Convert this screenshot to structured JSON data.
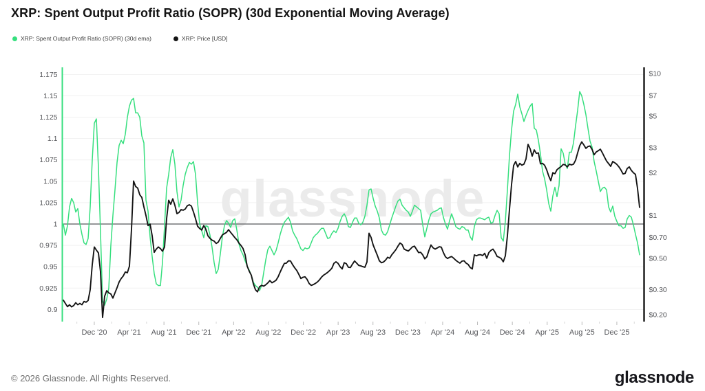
{
  "page": {
    "title": "XRP: Spent Output Profit Ratio (SOPR) (30d Exponential Moving Average)",
    "watermark": "glassnode",
    "footer_copyright": "© 2026 Glassnode. All Rights Reserved.",
    "footer_logo": "glassnode"
  },
  "legend": {
    "items": [
      {
        "label": "XRP: Spent Output Profit Ratio (SOPR) (30d ema)",
        "color": "#36df7e"
      },
      {
        "label": "XRP: Price [USD]",
        "color": "#141414"
      }
    ]
  },
  "chart_data": {
    "type": "line",
    "title": "XRP: Spent Output Profit Ratio (SOPR) (30d Exponential Moving Average)",
    "legend_position": "top-left",
    "grid": "horizontal-light",
    "watermark": "glassnode",
    "x_axis": {
      "type": "time",
      "range_years": [
        2020.62,
        2026.17
      ],
      "ticks": [
        {
          "label": "Dec '20",
          "year": 2020.917
        },
        {
          "label": "Apr '21",
          "year": 2021.25
        },
        {
          "label": "Aug '21",
          "year": 2021.583
        },
        {
          "label": "Dec '21",
          "year": 2021.917
        },
        {
          "label": "Apr '22",
          "year": 2022.25
        },
        {
          "label": "Aug '22",
          "year": 2022.583
        },
        {
          "label": "Dec '22",
          "year": 2022.917
        },
        {
          "label": "Apr '23",
          "year": 2023.25
        },
        {
          "label": "Aug '23",
          "year": 2023.583
        },
        {
          "label": "Dec '23",
          "year": 2023.917
        },
        {
          "label": "Apr '24",
          "year": 2024.25
        },
        {
          "label": "Aug '24",
          "year": 2024.583
        },
        {
          "label": "Dec '24",
          "year": 2024.917
        },
        {
          "label": "Apr '25",
          "year": 2025.25
        },
        {
          "label": "Aug '25",
          "year": 2025.583
        },
        {
          "label": "Dec '25",
          "year": 2025.917
        }
      ]
    },
    "y_axis_left": {
      "series": "SOPR (30d ema)",
      "scale": "linear",
      "range": [
        0.886,
        1.183
      ],
      "axis_color": "#36df7e",
      "ticks": [
        {
          "label": "1.175",
          "value": 1.175
        },
        {
          "label": "1.15",
          "value": 1.15
        },
        {
          "label": "1.125",
          "value": 1.125
        },
        {
          "label": "1.1",
          "value": 1.1
        },
        {
          "label": "1.075",
          "value": 1.075
        },
        {
          "label": "1.05",
          "value": 1.05
        },
        {
          "label": "1.025",
          "value": 1.025
        },
        {
          "label": "1",
          "value": 1.0
        },
        {
          "label": "0.975",
          "value": 0.975
        },
        {
          "label": "0.95",
          "value": 0.95
        },
        {
          "label": "0.925",
          "value": 0.925
        },
        {
          "label": "0.9",
          "value": 0.9
        }
      ]
    },
    "y_axis_right": {
      "series": "XRP Price USD",
      "scale": "log",
      "range": [
        0.2,
        10
      ],
      "axis_color": "#141414",
      "ticks": [
        {
          "label": "$10",
          "value": 10
        },
        {
          "label": "$7",
          "value": 7
        },
        {
          "label": "$5",
          "value": 5
        },
        {
          "label": "$3",
          "value": 3
        },
        {
          "label": "$2",
          "value": 2
        },
        {
          "label": "$1",
          "value": 1
        },
        {
          "label": "$0.70",
          "value": 0.7
        },
        {
          "label": "$0.50",
          "value": 0.5
        },
        {
          "label": "$0.30",
          "value": 0.3
        },
        {
          "label": "$0.20",
          "value": 0.2
        }
      ]
    },
    "baseline": {
      "value": 1.0,
      "axis": "left",
      "color": "#56585b"
    },
    "x_sampling": {
      "start_year": 2020.6205,
      "step_years": 0.019763,
      "count": 280
    },
    "series": [
      {
        "name": "XRP: Spent Output Profit Ratio (SOPR) (30d ema)",
        "axis": "left",
        "color": "#36df7e",
        "values": [
          1.0,
          0.987,
          0.998,
          1.02,
          1.03,
          1.025,
          1.014,
          1.018,
          1.0,
          0.988,
          0.978,
          0.976,
          0.983,
          1.02,
          1.075,
          1.118,
          1.123,
          1.065,
          0.99,
          0.91,
          0.905,
          0.912,
          0.925,
          0.975,
          1.01,
          1.04,
          1.072,
          1.092,
          1.098,
          1.094,
          1.105,
          1.125,
          1.138,
          1.145,
          1.147,
          1.13,
          1.13,
          1.125,
          1.103,
          1.095,
          1.028,
          1.015,
          0.985,
          0.962,
          0.942,
          0.93,
          0.928,
          0.928,
          0.955,
          0.998,
          1.042,
          1.058,
          1.078,
          1.087,
          1.07,
          1.038,
          1.02,
          1.028,
          1.045,
          1.058,
          1.066,
          1.072,
          1.07,
          1.073,
          1.058,
          1.025,
          1.0,
          0.992,
          0.984,
          0.998,
          0.997,
          0.987,
          0.973,
          0.955,
          0.942,
          0.947,
          0.965,
          0.985,
          0.998,
          1.004,
          1.001,
          0.996,
          1.004,
          1.006,
          0.993,
          0.977,
          0.969,
          0.964,
          0.957,
          0.951,
          0.946,
          0.94,
          0.932,
          0.928,
          0.926,
          0.922,
          0.928,
          0.943,
          0.958,
          0.97,
          0.974,
          0.969,
          0.964,
          0.969,
          0.978,
          0.988,
          0.996,
          1.002,
          1.005,
          1.008,
          1.002,
          0.992,
          0.987,
          0.983,
          0.977,
          0.971,
          0.969,
          0.972,
          0.971,
          0.972,
          0.978,
          0.984,
          0.987,
          0.989,
          0.992,
          0.995,
          0.995,
          0.989,
          0.983,
          0.984,
          0.989,
          0.992,
          0.99,
          0.995,
          1.003,
          1.009,
          1.012,
          1.007,
          0.997,
          0.996,
          1.002,
          1.007,
          1.007,
          1.001,
          0.999,
          1.002,
          1.009,
          1.022,
          1.04,
          1.041,
          1.03,
          1.021,
          1.015,
          1.007,
          0.993,
          0.988,
          0.987,
          0.991,
          0.999,
          1.007,
          1.014,
          1.021,
          1.027,
          1.029,
          1.022,
          1.019,
          1.016,
          1.014,
          1.009,
          1.015,
          1.022,
          1.02,
          1.018,
          1.016,
          0.999,
          0.985,
          0.995,
          1.005,
          1.012,
          1.014,
          1.015,
          1.016,
          1.018,
          1.019,
          1.008,
          1.0,
          0.994,
          1.004,
          1.012,
          1.005,
          0.997,
          0.995,
          0.994,
          0.997,
          0.996,
          0.993,
          0.993,
          0.985,
          0.981,
          0.997,
          1.005,
          1.007,
          1.007,
          1.006,
          1.005,
          1.007,
          1.008,
          1.001,
          1.002,
          1.01,
          1.016,
          1.012,
          0.984,
          0.98,
          1.003,
          1.04,
          1.08,
          1.11,
          1.132,
          1.14,
          1.152,
          1.137,
          1.129,
          1.12,
          1.127,
          1.133,
          1.138,
          1.141,
          1.112,
          1.11,
          1.098,
          1.082,
          1.062,
          1.053,
          1.04,
          1.024,
          1.015,
          1.033,
          1.043,
          1.032,
          1.045,
          1.088,
          1.083,
          1.07,
          1.065,
          1.084,
          1.084,
          1.095,
          1.115,
          1.133,
          1.155,
          1.15,
          1.14,
          1.128,
          1.112,
          1.097,
          1.09,
          1.073,
          1.062,
          1.05,
          1.038,
          1.042,
          1.043,
          1.04,
          1.02,
          1.014,
          1.021,
          1.009,
          1.003,
          0.998,
          0.998,
          0.995,
          0.996,
          1.006,
          1.01,
          1.008,
          0.999,
          0.988,
          0.978,
          0.964
        ]
      },
      {
        "name": "XRP: Price [USD]",
        "axis": "right",
        "color": "#141414",
        "values": [
          0.253,
          0.24,
          0.228,
          0.235,
          0.227,
          0.232,
          0.243,
          0.235,
          0.24,
          0.235,
          0.248,
          0.245,
          0.252,
          0.3,
          0.45,
          0.6,
          0.57,
          0.545,
          0.4,
          0.191,
          0.27,
          0.295,
          0.285,
          0.28,
          0.262,
          0.285,
          0.31,
          0.34,
          0.36,
          0.375,
          0.4,
          0.395,
          0.44,
          0.8,
          1.75,
          1.6,
          1.56,
          1.4,
          1.34,
          1.15,
          1.0,
          0.85,
          0.87,
          0.72,
          0.55,
          0.58,
          0.6,
          0.585,
          0.56,
          0.6,
          0.95,
          1.28,
          1.2,
          1.31,
          1.18,
          1.03,
          1.05,
          1.1,
          1.09,
          1.11,
          1.17,
          1.19,
          1.165,
          1.06,
          0.95,
          0.84,
          0.81,
          0.79,
          0.85,
          0.8,
          0.72,
          0.69,
          0.67,
          0.66,
          0.635,
          0.65,
          0.69,
          0.73,
          0.745,
          0.76,
          0.795,
          0.76,
          0.73,
          0.7,
          0.675,
          0.64,
          0.615,
          0.585,
          0.53,
          0.44,
          0.405,
          0.38,
          0.33,
          0.3,
          0.29,
          0.315,
          0.322,
          0.318,
          0.325,
          0.335,
          0.348,
          0.336,
          0.342,
          0.35,
          0.37,
          0.4,
          0.43,
          0.46,
          0.462,
          0.48,
          0.478,
          0.45,
          0.428,
          0.41,
          0.385,
          0.36,
          0.367,
          0.37,
          0.355,
          0.332,
          0.322,
          0.326,
          0.332,
          0.34,
          0.352,
          0.368,
          0.38,
          0.388,
          0.398,
          0.41,
          0.425,
          0.46,
          0.472,
          0.46,
          0.436,
          0.42,
          0.465,
          0.458,
          0.432,
          0.43,
          0.455,
          0.478,
          0.462,
          0.445,
          0.442,
          0.436,
          0.432,
          0.47,
          0.75,
          0.7,
          0.62,
          0.57,
          0.525,
          0.48,
          0.465,
          0.47,
          0.485,
          0.508,
          0.5,
          0.528,
          0.55,
          0.575,
          0.608,
          0.64,
          0.625,
          0.58,
          0.57,
          0.562,
          0.58,
          0.6,
          0.608,
          0.578,
          0.548,
          0.55,
          0.528,
          0.495,
          0.512,
          0.568,
          0.62,
          0.592,
          0.58,
          0.59,
          0.602,
          0.598,
          0.548,
          0.512,
          0.498,
          0.508,
          0.514,
          0.5,
          0.484,
          0.472,
          0.462,
          0.477,
          0.48,
          0.462,
          0.452,
          0.43,
          0.42,
          0.528,
          0.52,
          0.528,
          0.53,
          0.522,
          0.542,
          0.5,
          0.548,
          0.568,
          0.58,
          0.552,
          0.515,
          0.508,
          0.498,
          0.472,
          0.52,
          0.72,
          1.1,
          1.65,
          2.25,
          2.4,
          2.2,
          2.33,
          2.26,
          2.3,
          2.5,
          3.17,
          2.95,
          2.62,
          2.9,
          2.74,
          2.76,
          2.31,
          2.33,
          2.26,
          2.1,
          1.9,
          1.76,
          2.0,
          1.97,
          2.1,
          2.16,
          2.21,
          2.29,
          2.27,
          2.2,
          2.3,
          2.27,
          2.3,
          2.45,
          2.76,
          3.1,
          3.3,
          3.14,
          2.97,
          3.06,
          3.09,
          2.92,
          2.68,
          2.8,
          2.86,
          2.93,
          2.76,
          2.58,
          2.42,
          2.32,
          2.22,
          2.4,
          2.35,
          2.29,
          2.2,
          2.09,
          1.96,
          1.98,
          2.14,
          2.2,
          2.08,
          2.0,
          1.95,
          1.55,
          1.14
        ]
      }
    ]
  }
}
